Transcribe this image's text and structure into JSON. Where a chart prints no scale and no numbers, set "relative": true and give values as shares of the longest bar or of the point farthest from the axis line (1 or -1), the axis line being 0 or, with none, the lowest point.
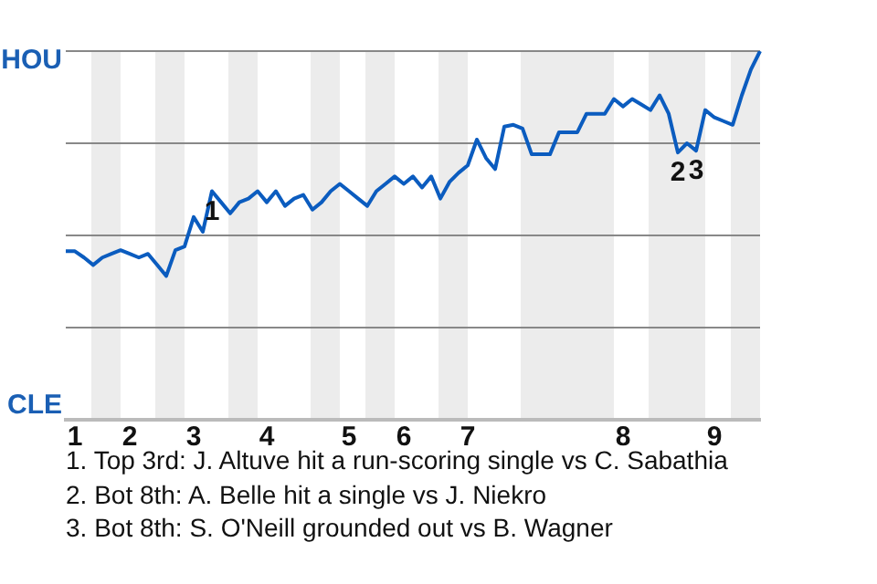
{
  "chart_data": {
    "type": "line",
    "relative": true,
    "categories": [
      null,
      "1",
      null,
      null,
      null,
      null,
      null,
      "2",
      null,
      null,
      null,
      null,
      null,
      null,
      "3",
      null,
      null,
      null,
      null,
      null,
      null,
      null,
      "4",
      null,
      null,
      null,
      null,
      null,
      null,
      null,
      null,
      "5",
      null,
      null,
      null,
      null,
      null,
      "6",
      null,
      null,
      null,
      null,
      null,
      null,
      "7",
      null,
      null,
      null,
      null,
      null,
      null,
      null,
      null,
      null,
      null,
      null,
      null,
      null,
      null,
      null,
      null,
      "8",
      null,
      null,
      null,
      null,
      null,
      null,
      null,
      null,
      null,
      "9",
      null,
      null,
      null,
      null,
      null
    ],
    "series": [
      {
        "color": "#0b5cbf",
        "values": [
          0.457,
          0.457,
          0.44,
          0.42,
          0.44,
          0.45,
          0.46,
          0.45,
          0.44,
          0.45,
          0.42,
          0.39,
          0.46,
          0.47,
          0.55,
          0.51,
          0.62,
          0.59,
          0.56,
          0.59,
          0.6,
          0.62,
          0.59,
          0.62,
          0.58,
          0.6,
          0.61,
          0.57,
          0.59,
          0.62,
          0.64,
          0.62,
          0.6,
          0.58,
          0.62,
          0.64,
          0.66,
          0.64,
          0.66,
          0.63,
          0.66,
          0.6,
          0.645,
          0.67,
          0.69,
          0.76,
          0.71,
          0.68,
          0.795,
          0.8,
          0.79,
          0.72,
          0.72,
          0.72,
          0.78,
          0.78,
          0.78,
          0.83,
          0.83,
          0.83,
          0.87,
          0.85,
          0.87,
          0.855,
          0.84,
          0.88,
          0.83,
          0.725,
          0.75,
          0.73,
          0.84,
          0.82,
          0.81,
          0.8,
          0.88,
          0.95,
          1
        ]
      }
    ],
    "grid": "y",
    "marker": "none",
    "annotations": [
      {
        "text": "1",
        "y": 0.62
      },
      {
        "text": "2",
        "y": 0.725
      },
      {
        "text": "3",
        "y": 0.73
      },
      "HOU",
      "CLE",
      "1. Top 3rd: J. Altuve hit a run-scoring single vs C. Sabathia",
      "2. Bot 8th: A. Belle hit a single vs J. Niekro",
      "3. Bot 8th: S. O'Neill grounded out vs B. Wagner"
    ]
  }
}
